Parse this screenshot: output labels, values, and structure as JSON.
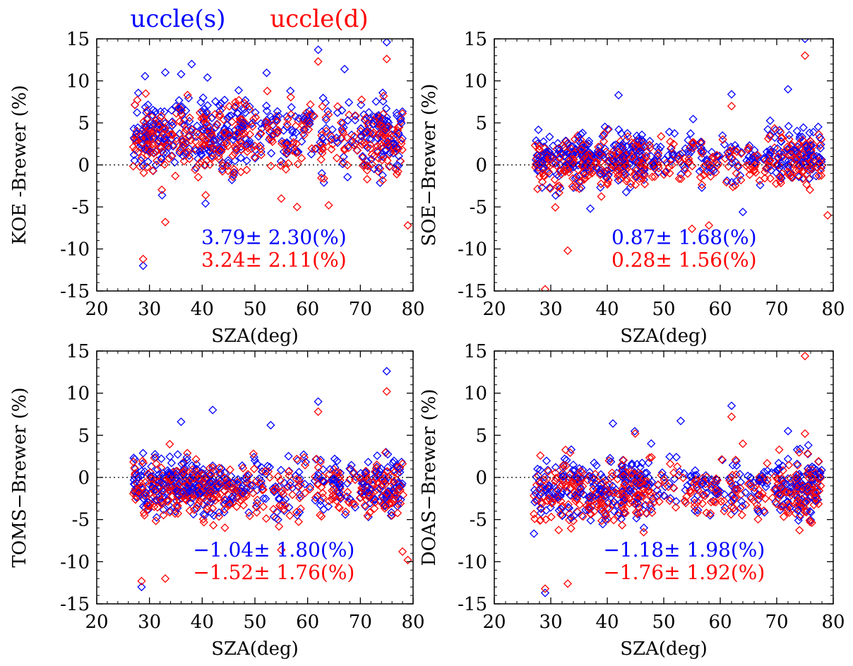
{
  "legend": [
    {
      "label": "uccle(s)",
      "color": "#0000ff"
    },
    {
      "label": "uccle(d)",
      "color": "#ff0000"
    }
  ],
  "colors": {
    "series_s": "#0000ff",
    "series_d": "#ff0000",
    "axis": "#000000"
  },
  "chart_data": [
    {
      "type": "scatter",
      "title": "",
      "xlabel": "SZA(deg)",
      "ylabel": "KOE  -Brewer  (%)",
      "xlim": [
        20,
        80
      ],
      "ylim": [
        -15,
        15
      ],
      "xticks": [
        "20",
        "30",
        "40",
        "50",
        "60",
        "70",
        "80"
      ],
      "yticks": [
        "15",
        "10",
        "5",
        "0",
        "-5",
        "-10",
        "-15"
      ],
      "zero_line": "dotted",
      "marker": "diamond",
      "series": [
        {
          "name": "uccle(s)",
          "mean": 3.79,
          "std": 2.3,
          "stat_text": "3.79±  2.30(%)",
          "outliers": [
            [
              28.8,
              -12.0
            ],
            [
              38,
              12.0
            ],
            [
              62,
              13.7
            ],
            [
              75,
              14.6
            ],
            [
              67,
              11.4
            ],
            [
              41,
              10.4
            ],
            [
              33,
              11.0
            ],
            [
              36,
              10.8
            ]
          ]
        },
        {
          "name": "uccle(d)",
          "mean": 3.24,
          "std": 2.11,
          "stat_text": "3.24±  2.11(%)",
          "outliers": [
            [
              28.8,
              -11.2
            ],
            [
              33,
              -6.8
            ],
            [
              62,
              12.3
            ],
            [
              75,
              12.6
            ],
            [
              79,
              -7.2
            ],
            [
              58,
              -5.0
            ],
            [
              64,
              -4.8
            ],
            [
              55,
              -4.0
            ]
          ]
        }
      ]
    },
    {
      "type": "scatter",
      "title": "",
      "xlabel": "SZA(deg)",
      "ylabel": "SOE−Brewer  (%)",
      "xlim": [
        20,
        80
      ],
      "ylim": [
        -15,
        15
      ],
      "xticks": [
        "20",
        "30",
        "40",
        "50",
        "60",
        "70",
        "80"
      ],
      "yticks": [
        "15",
        "10",
        "5",
        "0",
        "-5",
        "-10",
        "-15"
      ],
      "zero_line": "dotted",
      "marker": "diamond",
      "series": [
        {
          "name": "uccle(s)",
          "mean": 0.87,
          "std": 1.68,
          "stat_text": "0.87±  1.68(%)",
          "outliers": [
            [
              42,
              8.3
            ],
            [
              62,
              8.4
            ],
            [
              72,
              9.0
            ],
            [
              75,
              15.0
            ],
            [
              64,
              -5.6
            ],
            [
              37,
              -5.2
            ]
          ]
        },
        {
          "name": "uccle(d)",
          "mean": 0.28,
          "std": 1.56,
          "stat_text": "0.28±  1.56(%)",
          "outliers": [
            [
              29,
              -14.8
            ],
            [
              33,
              -10.2
            ],
            [
              75,
              13.0
            ],
            [
              55,
              -7.6
            ],
            [
              58,
              -7.2
            ],
            [
              79,
              -6.0
            ],
            [
              62,
              7.0
            ]
          ]
        }
      ]
    },
    {
      "type": "scatter",
      "title": "",
      "xlabel": "SZA(deg)",
      "ylabel": "TOMS−Brewer  (%)",
      "xlim": [
        20,
        80
      ],
      "ylim": [
        -15,
        15
      ],
      "xticks": [
        "20",
        "30",
        "40",
        "50",
        "60",
        "70",
        "80"
      ],
      "yticks": [
        "15",
        "10",
        "5",
        "0",
        "-5",
        "-10",
        "-15"
      ],
      "zero_line": "dotted",
      "marker": "diamond",
      "series": [
        {
          "name": "uccle(s)",
          "mean": -1.04,
          "std": 1.8,
          "stat_text": "−1.04±  1.80(%)",
          "outliers": [
            [
              28.5,
              -13.0
            ],
            [
              42,
              8.0
            ],
            [
              62,
              9.0
            ],
            [
              75,
              12.6
            ],
            [
              53,
              6.2
            ],
            [
              36,
              6.6
            ]
          ]
        },
        {
          "name": "uccle(d)",
          "mean": -1.52,
          "std": 1.76,
          "stat_text": "−1.52±  1.76(%)",
          "outliers": [
            [
              28.5,
              -12.3
            ],
            [
              33,
              -12.0
            ],
            [
              75,
              10.2
            ],
            [
              62,
              7.8
            ],
            [
              79,
              -9.8
            ],
            [
              78,
              -8.8
            ],
            [
              55,
              -8.6
            ]
          ]
        }
      ]
    },
    {
      "type": "scatter",
      "title": "",
      "xlabel": "SZA(deg)",
      "ylabel": "DOAS−Brewer  (%)",
      "xlim": [
        20,
        80
      ],
      "ylim": [
        -15,
        15
      ],
      "xticks": [
        "20",
        "30",
        "40",
        "50",
        "60",
        "70",
        "80"
      ],
      "yticks": [
        "15",
        "10",
        "5",
        "0",
        "-5",
        "-10",
        "-15"
      ],
      "zero_line": "dotted",
      "marker": "diamond",
      "series": [
        {
          "name": "uccle(s)",
          "mean": -1.18,
          "std": 1.98,
          "stat_text": "−1.18±  1.98(%)",
          "outliers": [
            [
              29,
              -13.7
            ],
            [
              62,
              8.5
            ],
            [
              41,
              6.4
            ],
            [
              53,
              6.7
            ],
            [
              72,
              5.5
            ]
          ]
        },
        {
          "name": "uccle(d)",
          "mean": -1.76,
          "std": 1.92,
          "stat_text": "−1.76±  1.92(%)",
          "outliers": [
            [
              29,
              -13.2
            ],
            [
              33,
              -12.6
            ],
            [
              75,
              14.4
            ],
            [
              62,
              7.2
            ],
            [
              64,
              4.0
            ],
            [
              75,
              5.2
            ]
          ]
        }
      ]
    }
  ]
}
